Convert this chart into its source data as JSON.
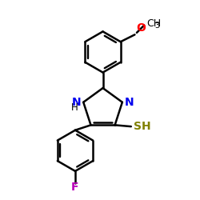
{
  "background_color": "#ffffff",
  "bond_color": "#000000",
  "N_color": "#0000ee",
  "O_color": "#ff0000",
  "F_color": "#bb00bb",
  "S_color": "#808000",
  "line_width": 1.8,
  "font_size_atoms": 10,
  "xlim": [
    -2.8,
    3.2
  ],
  "ylim": [
    -3.8,
    3.2
  ]
}
